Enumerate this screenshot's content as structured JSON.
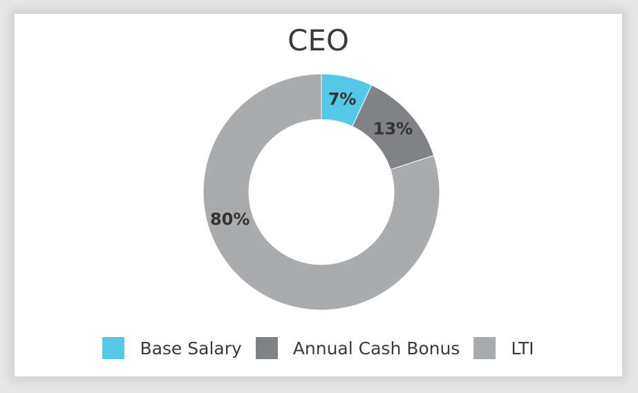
{
  "chart_data": {
    "type": "pie",
    "title": "CEO",
    "categories": [
      "Base Salary",
      "Annual Cash Bonus",
      "LTI"
    ],
    "values": [
      7,
      13,
      80
    ],
    "value_labels": [
      "7%",
      "13%",
      "80%"
    ],
    "colors": [
      "#55c8e8",
      "#818285",
      "#aaabad"
    ],
    "donut": true,
    "legend_position": "bottom"
  }
}
